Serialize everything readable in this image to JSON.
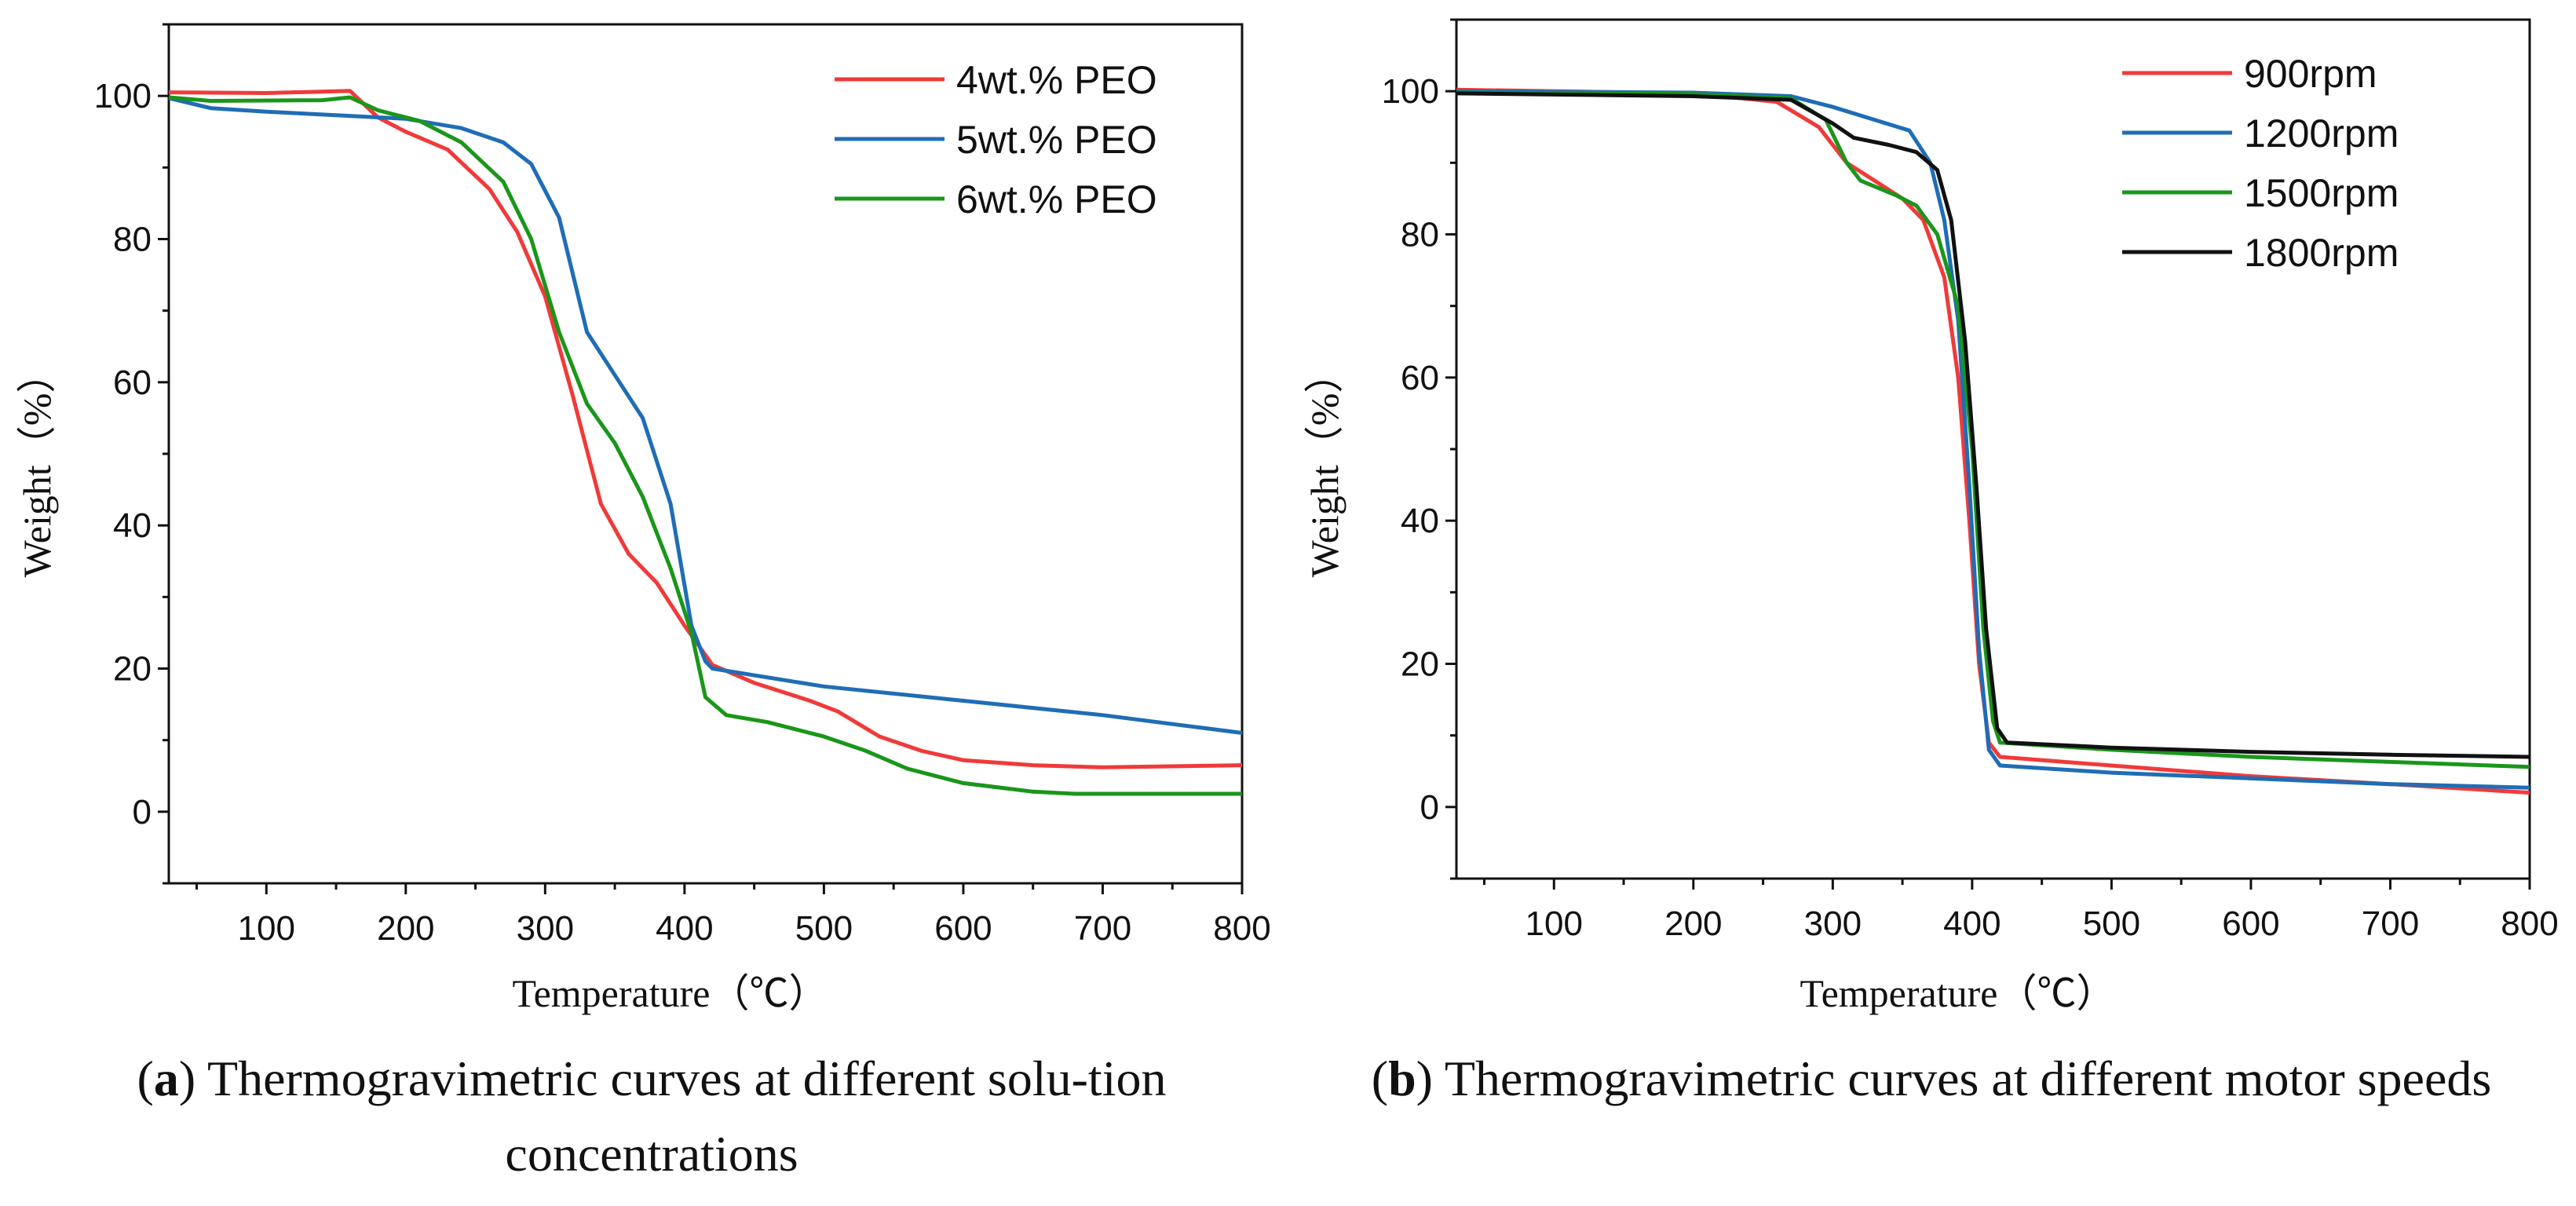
{
  "captions": [
    {
      "letter": "a",
      "text": "Thermogravimetric curves at different solu-tion concentrations"
    },
    {
      "letter": "b",
      "text": "Thermogravimetric curves at different motor speeds"
    }
  ],
  "chart_data": [
    {
      "type": "line",
      "title": "",
      "xlabel": "Temperature（℃）",
      "ylabel": "Weight（%）",
      "xlim": [
        30,
        800
      ],
      "ylim": [
        -10,
        110
      ],
      "xticks": [
        100,
        200,
        300,
        400,
        500,
        600,
        700,
        800
      ],
      "yticks": [
        0,
        20,
        40,
        60,
        80,
        100
      ],
      "grid": false,
      "legend": "top-right",
      "series": [
        {
          "name": "4wt.% PEO",
          "color": "#f03a3a",
          "x": [
            30,
            100,
            160,
            180,
            200,
            230,
            260,
            280,
            300,
            320,
            340,
            360,
            380,
            400,
            420,
            450,
            490,
            510,
            540,
            570,
            600,
            650,
            700,
            800
          ],
          "y": [
            100.5,
            100.4,
            100.7,
            97,
            95,
            92.5,
            87,
            81,
            72,
            58,
            43,
            36,
            32,
            26,
            20.5,
            18,
            15.5,
            14,
            10.5,
            8.5,
            7.2,
            6.5,
            6.2,
            6.5
          ]
        },
        {
          "name": "5wt.% PEO",
          "color": "#1f6db5",
          "x": [
            30,
            60,
            100,
            150,
            200,
            240,
            270,
            290,
            310,
            330,
            350,
            370,
            390,
            405,
            415,
            420,
            500,
            600,
            700,
            800
          ],
          "y": [
            99.7,
            98.3,
            97.8,
            97.3,
            96.8,
            95.5,
            93.5,
            90.5,
            83,
            67,
            61,
            55,
            43,
            26,
            21,
            20,
            17.5,
            15.5,
            13.5,
            11
          ]
        },
        {
          "name": "6wt.% PEO",
          "color": "#1a961a",
          "x": [
            30,
            60,
            140,
            160,
            180,
            210,
            240,
            270,
            290,
            310,
            330,
            350,
            370,
            390,
            405,
            415,
            430,
            460,
            500,
            530,
            560,
            600,
            650,
            680,
            800
          ],
          "y": [
            99.8,
            99.3,
            99.4,
            99.8,
            98,
            96.5,
            93.5,
            88,
            80,
            67,
            57,
            51.5,
            44,
            34,
            25,
            16,
            13.5,
            12.5,
            10.5,
            8.5,
            6,
            4,
            2.8,
            2.5,
            2.5
          ]
        }
      ]
    },
    {
      "type": "line",
      "title": "",
      "xlabel": "Temperature（℃）",
      "ylabel": "Weight（%）",
      "xlim": [
        30,
        800
      ],
      "ylim": [
        -10,
        110
      ],
      "xticks": [
        100,
        200,
        300,
        400,
        500,
        600,
        700,
        800
      ],
      "yticks": [
        0,
        20,
        40,
        60,
        80,
        100
      ],
      "grid": false,
      "legend": "top-right",
      "series": [
        {
          "name": "900rpm",
          "color": "#f03a3a",
          "x": [
            30,
            200,
            260,
            290,
            310,
            330,
            350,
            365,
            380,
            390,
            398,
            405,
            412,
            420,
            500,
            600,
            700,
            800
          ],
          "y": [
            100.2,
            99.7,
            98.5,
            95,
            90,
            87.5,
            85,
            82,
            74,
            60,
            40,
            20,
            9,
            7,
            5.8,
            4.3,
            3.2,
            2
          ]
        },
        {
          "name": "1200rpm",
          "color": "#1f6db5",
          "x": [
            30,
            200,
            270,
            300,
            330,
            355,
            370,
            380,
            390,
            398,
            405,
            412,
            420,
            500,
            600,
            700,
            800
          ],
          "y": [
            100,
            99.8,
            99.3,
            97.8,
            96,
            94.5,
            90,
            82,
            68,
            45,
            22,
            8,
            5.8,
            4.8,
            4,
            3.2,
            2.7
          ]
        },
        {
          "name": "1500rpm",
          "color": "#1a961a",
          "x": [
            30,
            200,
            270,
            295,
            310,
            320,
            345,
            360,
            375,
            390,
            400,
            408,
            415,
            420,
            500,
            600,
            700,
            800
          ],
          "y": [
            99.8,
            99.6,
            99,
            96,
            90,
            87.5,
            85.5,
            84,
            80,
            70,
            50,
            25,
            12,
            9,
            8,
            7,
            6.3,
            5.6
          ]
        },
        {
          "name": "1800rpm",
          "color": "#111111",
          "x": [
            30,
            200,
            270,
            300,
            315,
            340,
            360,
            375,
            385,
            395,
            403,
            410,
            418,
            425,
            500,
            600,
            700,
            800
          ],
          "y": [
            99.7,
            99.3,
            98.8,
            95.5,
            93.5,
            92.5,
            91.5,
            89,
            82,
            65,
            45,
            25,
            11,
            9,
            8.3,
            7.7,
            7.3,
            7
          ]
        }
      ]
    }
  ]
}
